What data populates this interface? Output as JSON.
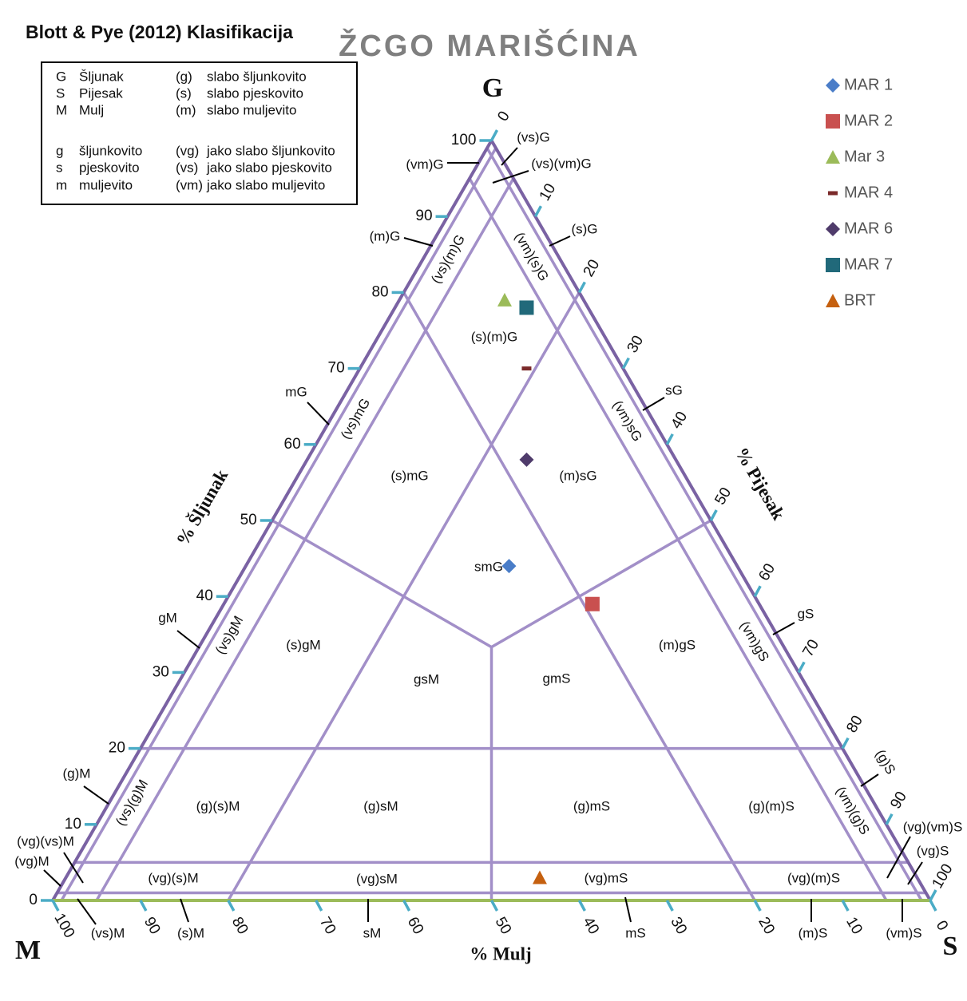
{
  "chart_data": {
    "type": "ternary",
    "heading": "Blott & Pye (2012) Klasifikacija",
    "title": "ŽCGO MARIŠĆINA",
    "corners": {
      "gravel": "G",
      "mud": "M",
      "sand": "S"
    },
    "axis_labels": {
      "gravel": "% Šljunak",
      "mud": "% Mulj",
      "sand": "% Pijesak"
    },
    "gravel_ticks": [
      0,
      10,
      20,
      30,
      40,
      50,
      60,
      70,
      80,
      90,
      100
    ],
    "mud_ticks": [
      100,
      90,
      80,
      70,
      60,
      50,
      40,
      30,
      20,
      10,
      0
    ],
    "sand_ticks": [
      0,
      10,
      20,
      30,
      40,
      50,
      60,
      70,
      80,
      90,
      100
    ],
    "field_lines": {
      "gravel": [
        1,
        5,
        20
      ],
      "sand": [
        1,
        5,
        20
      ],
      "mud": [
        1,
        5,
        20
      ],
      "split": 50
    },
    "classification_key": [
      [
        "G",
        "Šljunak",
        "(g)",
        "slabo šljunkovito"
      ],
      [
        "S",
        "Pijesak",
        "(s)",
        "slabo pjeskovito"
      ],
      [
        "M",
        "Mulj",
        "(m)",
        "slabo muljevito"
      ],
      [
        "g",
        "šljunkovito",
        "(vg)",
        "jako slabo šljunkovito"
      ],
      [
        "s",
        "pjeskovito",
        "(vs)",
        "jako slabo pjeskovito"
      ],
      [
        "m",
        "muljevito",
        "(vm)",
        "jako slabo muljevito"
      ]
    ],
    "field_labels": [
      "(vs)G",
      "(vm)G",
      "(vs)(vm)G",
      "(m)G",
      "(vs)(m)G",
      "(vm)(s)G",
      "(s)G",
      "(s)(m)G",
      "mG",
      "(vs)mG",
      "(vm)sG",
      "sG",
      "(s)mG",
      "(m)sG",
      "smG",
      "(vs)gM",
      "gM",
      "(s)gM",
      "gsM",
      "gmS",
      "(m)gS",
      "(vm)gS",
      "gS",
      "(g)M",
      "(vs)(g)M",
      "(g)(s)M",
      "(g)sM",
      "(g)mS",
      "(g)(m)S",
      "(vm)(g)S",
      "(g)S",
      "(vg)(vs)M",
      "(vg)M",
      "(vg)(s)M",
      "(vg)sM",
      "(vg)mS",
      "(vg)(m)S",
      "(vg)(vm)S",
      "(vg)S",
      "(vs)M",
      "(s)M",
      "sM",
      "mS",
      "(m)S",
      "(vm)S"
    ],
    "series": [
      {
        "name": "MAR 1",
        "color": "#4a7dc8",
        "marker": "diamond",
        "gravel": [
          44
        ],
        "sand": [
          30
        ],
        "mud": [
          26
        ]
      },
      {
        "name": "MAR 2",
        "color": "#c9504f",
        "marker": "square",
        "gravel": [
          39
        ],
        "sand": [
          42
        ],
        "mud": [
          19
        ]
      },
      {
        "name": "Mar 3",
        "color": "#9bbb59",
        "marker": "triangle",
        "gravel": [
          79
        ],
        "sand": [
          12
        ],
        "mud": [
          9
        ]
      },
      {
        "name": "MAR 4",
        "color": "#7b2a2a",
        "marker": "dash",
        "gravel": [
          70
        ],
        "sand": [
          19
        ],
        "mud": [
          11
        ]
      },
      {
        "name": "MAR 6",
        "color": "#4f3b6b",
        "marker": "diamond",
        "gravel": [
          58
        ],
        "sand": [
          25
        ],
        "mud": [
          17
        ]
      },
      {
        "name": "MAR 7",
        "color": "#21697a",
        "marker": "square",
        "gravel": [
          78
        ],
        "sand": [
          15
        ],
        "mud": [
          7
        ]
      },
      {
        "name": "BRT",
        "color": "#c5600f",
        "marker": "triangle",
        "gravel": [
          3
        ],
        "sand": [
          54
        ],
        "mud": [
          43
        ]
      }
    ]
  }
}
